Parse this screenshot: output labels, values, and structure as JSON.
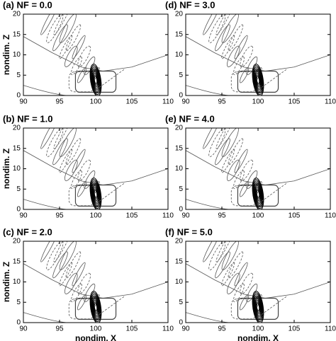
{
  "chart_data": [
    {
      "type": "contour",
      "title": "(a) NF = 0.0",
      "ylabel": "nondim. Z",
      "xlim": [
        90,
        110
      ],
      "ylim": [
        0,
        20
      ],
      "xticks": [
        90,
        95,
        100,
        105,
        110
      ],
      "yticks": [
        0,
        5,
        10,
        15,
        20
      ]
    },
    {
      "type": "contour",
      "title": "(d) NF = 3.0",
      "xlim": [
        90,
        110
      ],
      "ylim": [
        0,
        20
      ],
      "xticks": [
        90,
        95,
        100,
        105,
        110
      ],
      "yticks": [
        0,
        5,
        10,
        15,
        20
      ]
    },
    {
      "type": "contour",
      "title": "(b) NF = 1.0",
      "ylabel": "nondim. Z",
      "xlim": [
        90,
        110
      ],
      "ylim": [
        0,
        20
      ],
      "xticks": [
        90,
        95,
        100,
        105,
        110
      ],
      "yticks": [
        0,
        5,
        10,
        15,
        20
      ]
    },
    {
      "type": "contour",
      "title": "(e) NF = 4.0",
      "xlim": [
        90,
        110
      ],
      "ylim": [
        0,
        20
      ],
      "xticks": [
        90,
        95,
        100,
        105,
        110
      ],
      "yticks": [
        0,
        5,
        10,
        15,
        20
      ]
    },
    {
      "type": "contour",
      "title": "(c) NF = 2.0",
      "ylabel": "nondim. Z",
      "xlabel": "nondim. X",
      "xlim": [
        90,
        110
      ],
      "ylim": [
        0,
        20
      ],
      "xticks": [
        90,
        95,
        100,
        105,
        110
      ],
      "yticks": [
        0,
        5,
        10,
        15,
        20
      ]
    },
    {
      "type": "contour",
      "title": "(f) NF = 5.0",
      "xlabel": "nondim. X",
      "xlim": [
        90,
        110
      ],
      "ylim": [
        0,
        20
      ],
      "xticks": [
        90,
        95,
        100,
        105,
        110
      ],
      "yticks": [
        0,
        5,
        10,
        15,
        20
      ]
    }
  ]
}
